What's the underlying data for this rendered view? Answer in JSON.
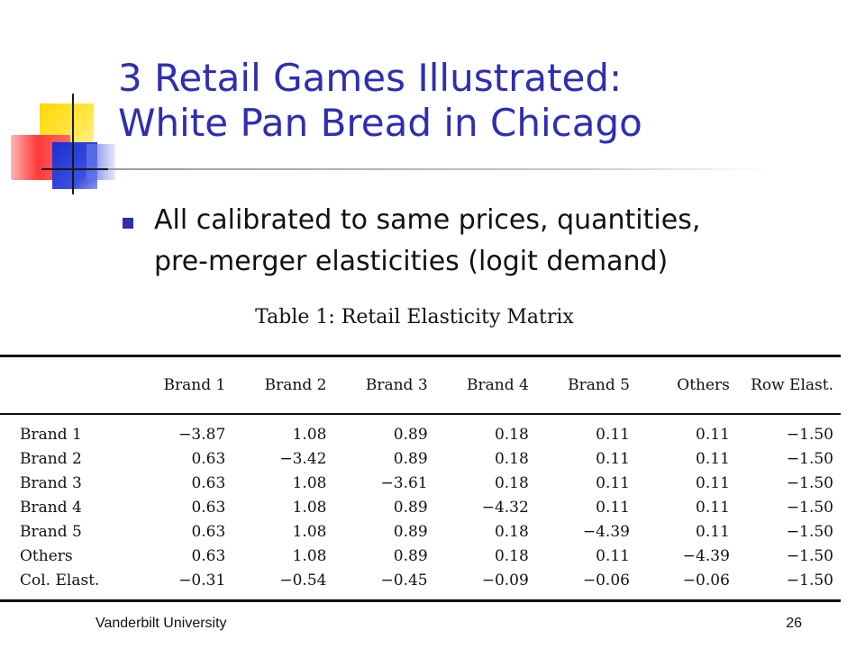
{
  "slide": {
    "title_line1": "3 Retail Games Illustrated:",
    "title_line2": "White Pan Bread in Chicago",
    "bullet_line1": "All calibrated to same prices, quantities,",
    "bullet_line2": "pre-merger elasticities (logit demand)",
    "footer_left": "Vanderbilt University",
    "page_number": "26"
  },
  "colors": {
    "title": "#2e2eb0",
    "bullet": "#2e2eb0",
    "text": "#111111"
  },
  "icons": {
    "logo": "overlapping-squares-logo",
    "bullet": "square-bullet-icon"
  },
  "table": {
    "caption": "Table 1: Retail Elasticity Matrix",
    "header": [
      "",
      "Brand 1",
      "Brand 2",
      "Brand 3",
      "Brand 4",
      "Brand 5",
      "Others",
      "Row  Elast."
    ],
    "rows": [
      {
        "label": "Brand 1",
        "cells": [
          "−3.87",
          "1.08",
          "0.89",
          "0.18",
          "0.11",
          "0.11",
          "−1.50"
        ]
      },
      {
        "label": "Brand 2",
        "cells": [
          "0.63",
          "−3.42",
          "0.89",
          "0.18",
          "0.11",
          "0.11",
          "−1.50"
        ]
      },
      {
        "label": "Brand 3",
        "cells": [
          "0.63",
          "1.08",
          "−3.61",
          "0.18",
          "0.11",
          "0.11",
          "−1.50"
        ]
      },
      {
        "label": "Brand 4",
        "cells": [
          "0.63",
          "1.08",
          "0.89",
          "−4.32",
          "0.11",
          "0.11",
          "−1.50"
        ]
      },
      {
        "label": "Brand 5",
        "cells": [
          "0.63",
          "1.08",
          "0.89",
          "0.18",
          "−4.39",
          "0.11",
          "−1.50"
        ]
      },
      {
        "label": "Others",
        "cells": [
          "0.63",
          "1.08",
          "0.89",
          "0.18",
          "0.11",
          "−4.39",
          "−1.50"
        ]
      },
      {
        "label": "Col. Elast.",
        "cells": [
          "−0.31",
          "−0.54",
          "−0.45",
          "−0.09",
          "−0.06",
          "−0.06",
          "−1.50"
        ]
      }
    ]
  }
}
